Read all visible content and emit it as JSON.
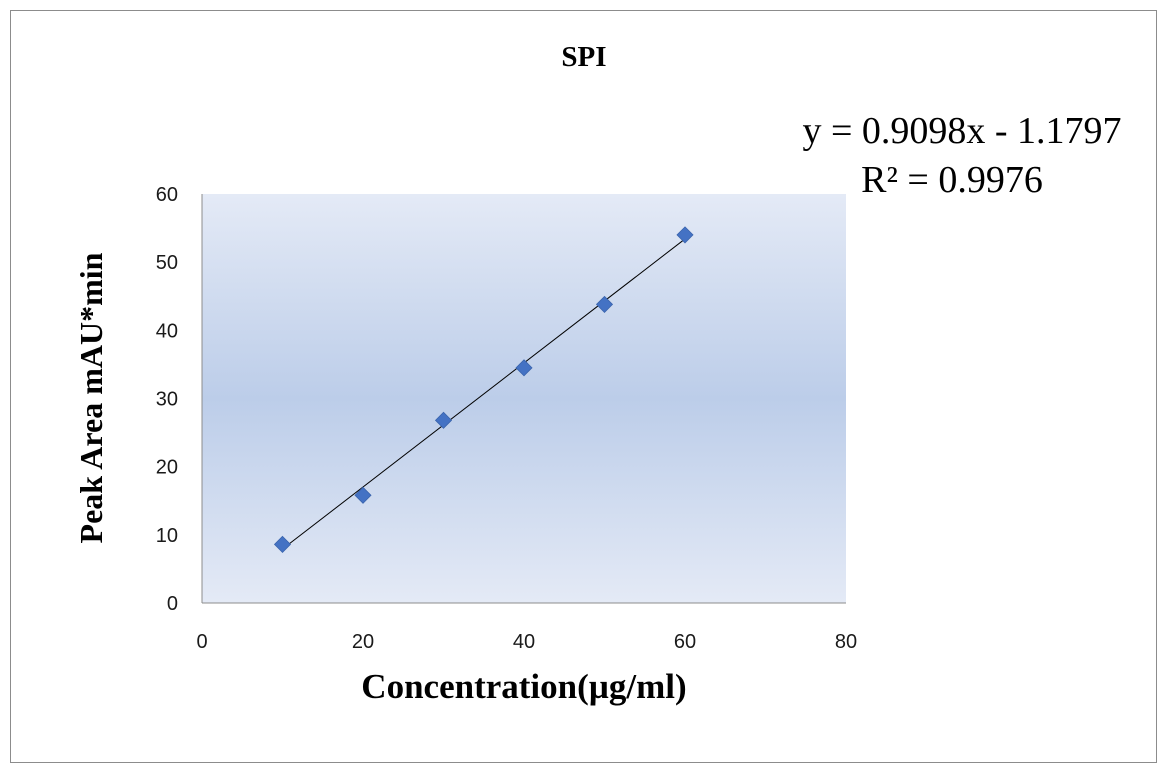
{
  "chart_data": {
    "type": "scatter",
    "title": "SPI",
    "xlabel": "Concentration(µg/ml)",
    "ylabel": "Peak Area  mAU*min",
    "xlim": [
      0,
      80
    ],
    "ylim": [
      0,
      60
    ],
    "xticks": [
      "0",
      "20",
      "40",
      "60",
      "80"
    ],
    "yticks": [
      "0",
      "10",
      "20",
      "30",
      "40",
      "50",
      "60"
    ],
    "grid": false,
    "series": [
      {
        "x": [
          10,
          20,
          30,
          40,
          50,
          60
        ],
        "y": [
          8.6,
          15.8,
          26.8,
          34.5,
          43.8,
          54.0
        ],
        "marker": "diamond",
        "color": "#4472c4"
      }
    ],
    "trendline": {
      "type": "linear",
      "slope": 0.9098,
      "intercept": -1.1797,
      "x_range": [
        10,
        60
      ],
      "color": "#000000",
      "equation": "y = 0.9098x - 1.1797",
      "r_squared": "R² = 0.9976"
    },
    "plot_background": {
      "type": "gradient",
      "colors": [
        "#e4eaf6",
        "#bccde9",
        "#e4eaf6"
      ]
    }
  }
}
